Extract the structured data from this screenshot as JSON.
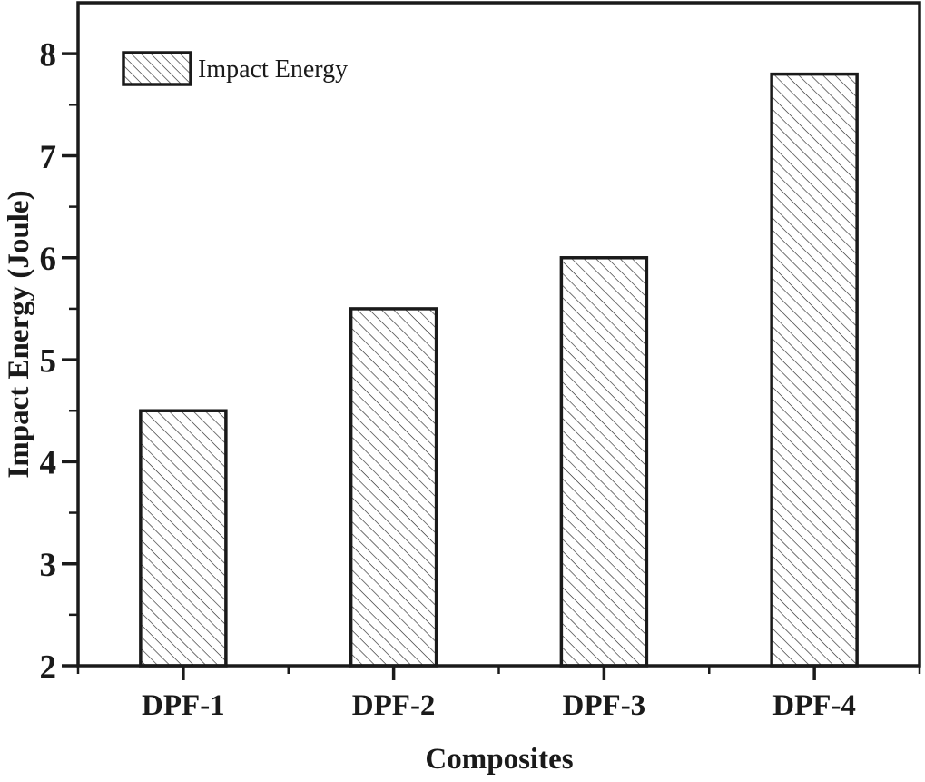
{
  "chart_data": {
    "type": "bar",
    "title": "",
    "categories": [
      "DPF-1",
      "DPF-2",
      "DPF-3",
      "DPF-4"
    ],
    "series": [
      {
        "name": "Impact Energy",
        "values": [
          4.5,
          5.5,
          6.0,
          7.8
        ]
      }
    ],
    "xlabel": "Composites",
    "ylabel": "Impact Energy (Joule)",
    "ylim": [
      2,
      8.5
    ],
    "y_major_ticks": [
      2,
      3,
      4,
      5,
      6,
      7,
      8
    ],
    "y_tick_labels": [
      "2",
      "3",
      "4",
      "5",
      "6",
      "7",
      "8"
    ],
    "y_minor_step": 0.5,
    "grid": false,
    "legend": {
      "position": "top-left",
      "entries": [
        "Impact Energy"
      ]
    },
    "bar_style": {
      "fill": "#ffffff",
      "hatch": "diagonal-down",
      "hatch_color": "#2a2a2a",
      "border_color": "#1a1a1a"
    },
    "colors": {
      "axis": "#1a1a1a",
      "text": "#1a1a1a",
      "background": "#ffffff"
    }
  }
}
